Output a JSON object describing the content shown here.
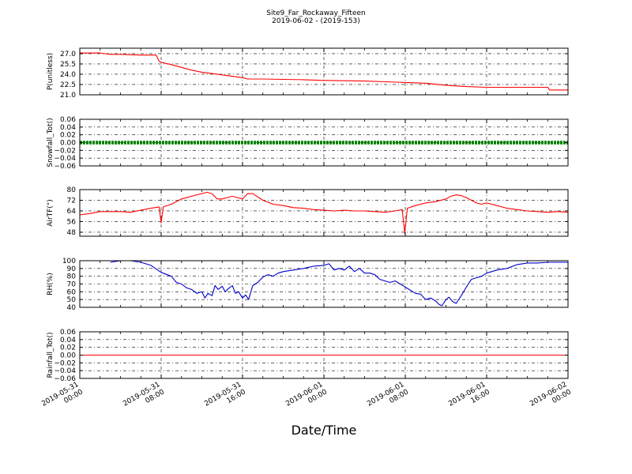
{
  "figure": {
    "title": "Site9_Far_Rockaway_Fifteen",
    "subtitle": "2019-06-02 - (2019-153)",
    "xlabel": "Date/Time",
    "background": "#ffffff"
  },
  "chart_data": [
    {
      "type": "line",
      "ylabel": "P(unitless)",
      "color": "#ff0000",
      "ylim": [
        21.0,
        27.8
      ],
      "yticks": [
        "27.0",
        "25.5",
        "24.0",
        "22.5",
        "21.0"
      ],
      "ytick_values": [
        27.0,
        25.5,
        24.0,
        22.5,
        21.0
      ],
      "xlim": [
        0,
        48
      ],
      "grid": true,
      "x": [
        0,
        2,
        3,
        4,
        6,
        7.5,
        7.8,
        8.1,
        9,
        10,
        11,
        12,
        13,
        14,
        15,
        16,
        16.5,
        17,
        18,
        20,
        22,
        24,
        26,
        28,
        30,
        32,
        34,
        36,
        38,
        40,
        42,
        44,
        46,
        46.2,
        48
      ],
      "y": [
        27.1,
        27.1,
        26.9,
        26.9,
        26.8,
        26.8,
        25.9,
        25.7,
        25.4,
        25.0,
        24.6,
        24.3,
        24.1,
        23.9,
        23.7,
        23.5,
        23.3,
        23.3,
        23.3,
        23.25,
        23.2,
        23.1,
        23.05,
        23.0,
        22.9,
        22.8,
        22.7,
        22.4,
        22.2,
        22.1,
        22.1,
        22.1,
        22.1,
        21.7,
        21.7
      ],
      "xticks": [
        "2019-05-31 00:00",
        "2019-05-31 08:00",
        "2019-05-31 16:00",
        "2019-06-01 00:00",
        "2019-06-01 08:00",
        "2019-06-01 16:00",
        "2019-06-02 00:00"
      ],
      "xtick_values": [
        0,
        8,
        16,
        24,
        32,
        40,
        48
      ]
    },
    {
      "type": "line",
      "ylabel": "Snowfall_Tot()",
      "color": "#008000",
      "marker": "dots",
      "ylim": [
        -0.06,
        0.06
      ],
      "yticks": [
        "0.06",
        "0.04",
        "0.02",
        "0.00",
        "−0.02",
        "−0.04",
        "−0.06"
      ],
      "ytick_values": [
        0.06,
        0.04,
        0.02,
        0.0,
        -0.02,
        -0.04,
        -0.06
      ],
      "xlim": [
        0,
        48
      ],
      "grid": true,
      "x": [
        0,
        48
      ],
      "y": [
        0.0,
        0.0
      ]
    },
    {
      "type": "line",
      "ylabel": "AirTF(°)",
      "color": "#ff0000",
      "ylim": [
        45,
        80
      ],
      "yticks": [
        "80",
        "72",
        "64",
        "56",
        "48"
      ],
      "ytick_values": [
        80,
        72,
        64,
        56,
        48
      ],
      "xlim": [
        0,
        48
      ],
      "grid": true,
      "x": [
        0,
        1,
        2,
        3,
        4,
        5,
        6,
        7,
        7.8,
        8.0,
        8.2,
        9,
        10,
        11,
        12,
        12.5,
        13,
        13.5,
        14,
        14.5,
        15,
        15.5,
        16,
        16.5,
        17,
        18,
        19,
        20,
        21,
        22,
        23,
        24,
        25,
        26,
        27,
        28,
        29,
        30,
        31,
        31.7,
        31.95,
        32.2,
        33,
        34,
        35,
        36,
        36.5,
        37,
        37.5,
        38,
        38.5,
        39,
        39.5,
        40,
        41,
        42,
        43,
        44,
        45,
        46,
        47,
        48
      ],
      "y": [
        61,
        62,
        63.5,
        63.5,
        63.5,
        63,
        64.5,
        66,
        67,
        55,
        67,
        69,
        73,
        75,
        77,
        78,
        77,
        73,
        73,
        74,
        75,
        74,
        73,
        77,
        77,
        72,
        69,
        68,
        66.5,
        66,
        65,
        64.5,
        64,
        64.5,
        64,
        64,
        63.5,
        63,
        64,
        65,
        47,
        66,
        68,
        70,
        71,
        73,
        75,
        76,
        75.5,
        74,
        72,
        70,
        69,
        70,
        68,
        66,
        65,
        64,
        63.5,
        63,
        63.5,
        63
      ]
    },
    {
      "type": "line",
      "ylabel": "RH(%)",
      "color": "#0000cc",
      "ylim": [
        40,
        100
      ],
      "yticks": [
        "100",
        "90",
        "80",
        "70",
        "60",
        "50",
        "40"
      ],
      "ytick_values": [
        100,
        90,
        80,
        70,
        60,
        50,
        40
      ],
      "xlim": [
        0,
        48
      ],
      "grid": true,
      "x": [
        3,
        4,
        5,
        6,
        7,
        8,
        9,
        9.5,
        10,
        10.5,
        11,
        11.5,
        12,
        12.3,
        12.6,
        13,
        13.3,
        13.6,
        14,
        14.3,
        14.6,
        15,
        15.3,
        15.6,
        16,
        16.3,
        16.6,
        17,
        17.5,
        18,
        18.5,
        19,
        19.5,
        20,
        21,
        22,
        23,
        24,
        24.5,
        25,
        25.5,
        26,
        26.5,
        27,
        27.5,
        28,
        28.5,
        29,
        29.5,
        30,
        30.5,
        31,
        31.5,
        32,
        32.5,
        33,
        33.5,
        34,
        34.5,
        35,
        35.3,
        35.6,
        36,
        36.3,
        36.6,
        37,
        37.5,
        38,
        38.5,
        39,
        39.5,
        40,
        40.5,
        41,
        42,
        43,
        44,
        45,
        46,
        47,
        48
      ],
      "y": [
        98,
        100,
        100,
        98,
        94,
        85,
        80,
        72,
        70,
        65,
        63,
        58,
        60,
        52,
        58,
        55,
        68,
        63,
        67,
        60,
        64,
        68,
        58,
        60,
        52,
        56,
        50,
        68,
        72,
        79,
        82,
        80,
        84,
        86,
        88,
        90,
        93,
        94,
        96,
        88,
        90,
        88,
        93,
        86,
        90,
        84,
        84,
        82,
        76,
        74,
        72,
        74,
        70,
        66,
        62,
        58,
        57,
        50,
        52,
        48,
        44,
        42,
        50,
        53,
        48,
        45,
        55,
        66,
        76,
        78,
        80,
        84,
        86,
        88,
        90,
        95,
        97,
        97,
        98,
        98,
        98
      ]
    },
    {
      "type": "line",
      "ylabel": "Rainfall_Tot()",
      "color": "#ff0000",
      "ylim": [
        -0.06,
        0.06
      ],
      "yticks": [
        "0.06",
        "0.04",
        "0.02",
        "0.00",
        "−0.02",
        "−0.04",
        "−0.06"
      ],
      "ytick_values": [
        0.06,
        0.04,
        0.02,
        0.0,
        -0.02,
        -0.04,
        -0.06
      ],
      "xlim": [
        0,
        48
      ],
      "grid": true,
      "x": [
        0,
        48
      ],
      "y": [
        0.0,
        0.0
      ],
      "xticks": [
        "2019-05-31 00:00",
        "2019-05-31 08:00",
        "2019-05-31 16:00",
        "2019-06-01 00:00",
        "2019-06-01 08:00",
        "2019-06-01 16:00",
        "2019-06-02 00:00"
      ],
      "xtick_values": [
        0,
        8,
        16,
        24,
        32,
        40,
        48
      ]
    }
  ]
}
